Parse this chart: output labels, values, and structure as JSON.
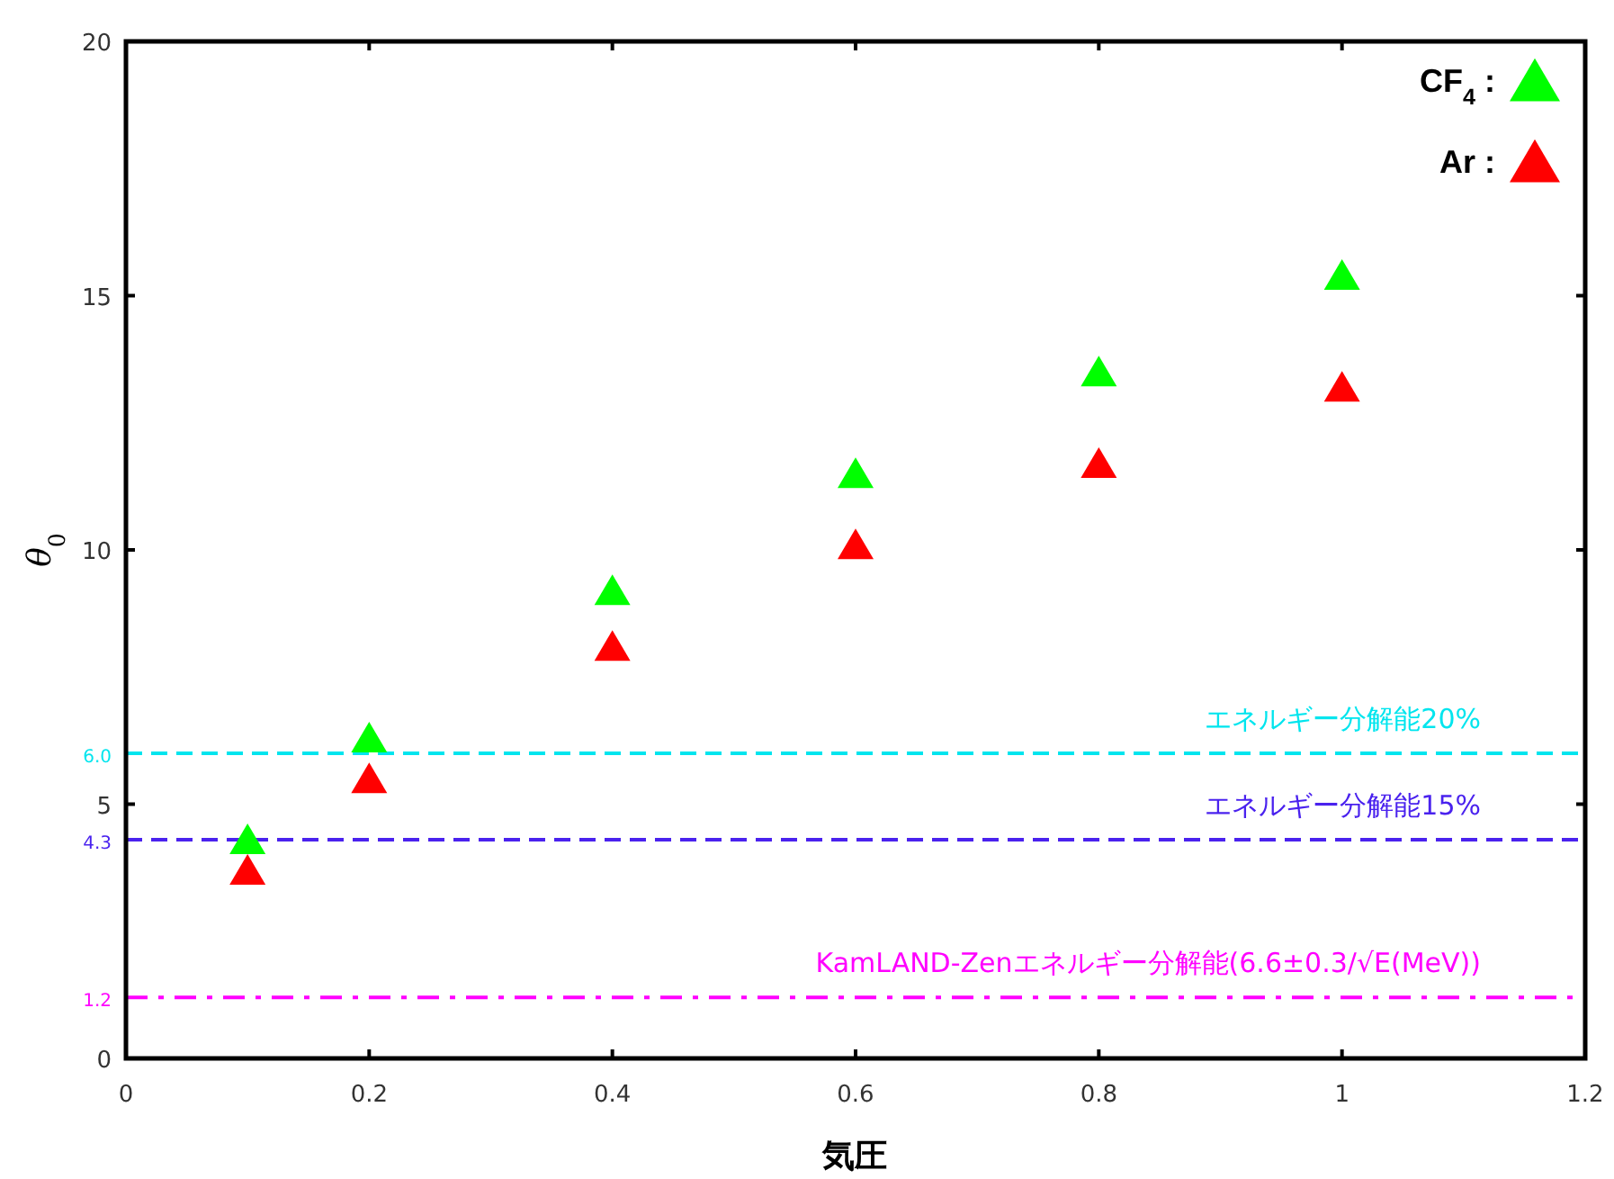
{
  "chart_data": {
    "type": "scatter",
    "xlabel": "**気圧**",
    "ylabel": "*θ*$_{0}$",
    "x": [
      0.1,
      0.2,
      0.4,
      0.6,
      0.8,
      1.0
    ],
    "series": [
      {
        "name": "CF$_{4}$ :",
        "color": "#00ff00",
        "values": [
          4.3,
          6.3,
          9.2,
          11.5,
          13.5,
          15.4
        ]
      },
      {
        "name": "Ar :",
        "color": "#ff0000",
        "values": [
          3.7,
          5.5,
          8.1,
          10.1,
          11.7,
          13.2
        ]
      }
    ],
    "marker": "triangle",
    "legend": "top right",
    "xlim": [
      0,
      1.2
    ],
    "xticks": [
      0,
      0.2,
      0.4,
      0.6,
      0.8,
      1,
      1.2
    ],
    "ylim": [
      0,
      20
    ],
    "yticks": [
      0,
      5,
      10,
      15,
      20,
      {
        "value": 6.0,
        "label": "6.0"
      },
      {
        "value": 4.3,
        "label": "4.3"
      },
      {
        "value": 1.2,
        "label": "1.2"
      }
    ],
    "ref_lines": [
      {
        "axis": "y",
        "value": 6.0,
        "label": "エネルギー分解能20%",
        "color": "#00e5ee",
        "line_style": "dashed"
      },
      {
        "axis": "y",
        "value": 4.3,
        "label": "エネルギー分解能15%",
        "color": "#4a22ee",
        "line_style": "dashed"
      },
      {
        "axis": "y",
        "value": 1.2,
        "label": "KamLAND-Zenエネルギー分解能(6.6±0.3/√E(MeV))",
        "color": "#ff00ff",
        "line_style": "dashdot"
      }
    ]
  }
}
